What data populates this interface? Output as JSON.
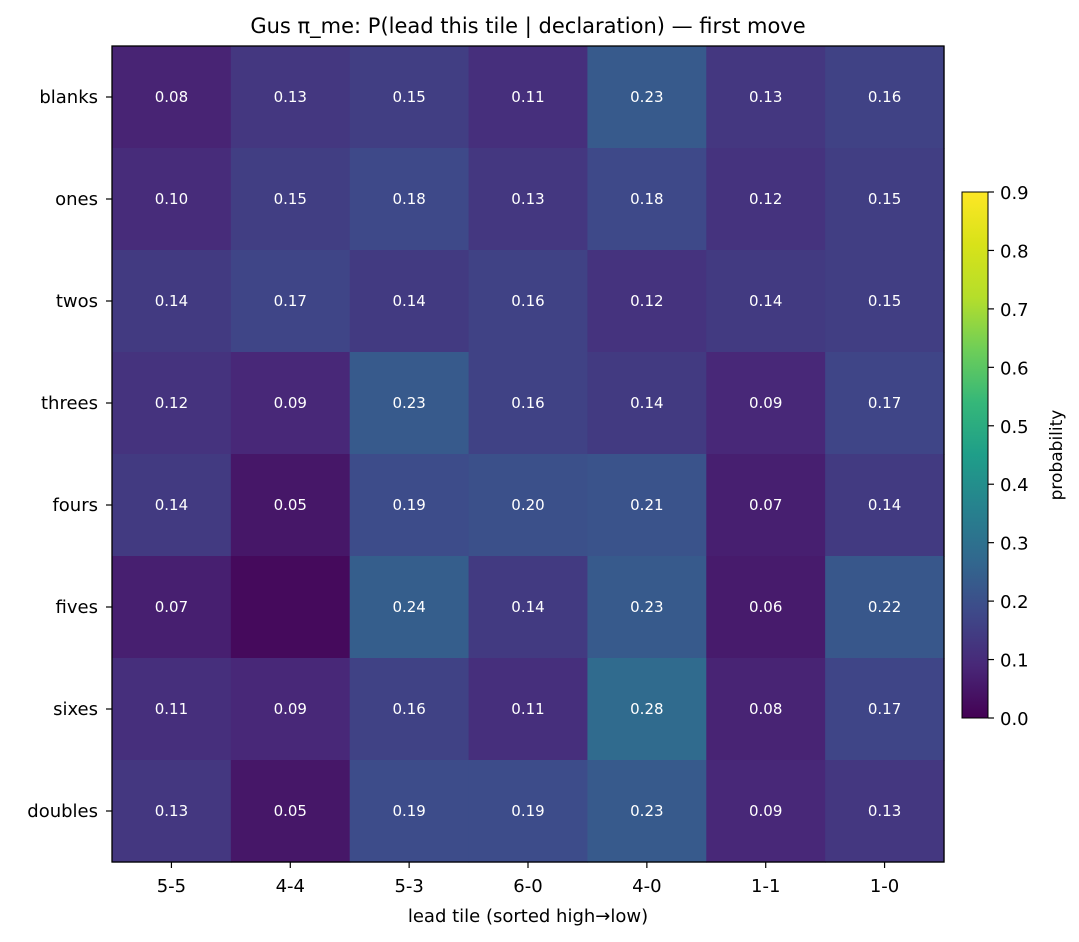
{
  "chart_data": {
    "type": "heatmap",
    "title": "Gus π_me: P(lead this tile | declaration) — first move",
    "xlabel": "lead tile (sorted high→low)",
    "ylabel": "",
    "x_categories": [
      "5-5",
      "4-4",
      "5-3",
      "6-0",
      "4-0",
      "1-1",
      "1-0"
    ],
    "y_categories": [
      "blanks",
      "ones",
      "twos",
      "threes",
      "fours",
      "fives",
      "sixes",
      "doubles"
    ],
    "values": [
      [
        0.08,
        0.13,
        0.15,
        0.11,
        0.23,
        0.13,
        0.16
      ],
      [
        0.1,
        0.15,
        0.18,
        0.13,
        0.18,
        0.12,
        0.15
      ],
      [
        0.14,
        0.17,
        0.14,
        0.16,
        0.12,
        0.14,
        0.15
      ],
      [
        0.12,
        0.09,
        0.23,
        0.16,
        0.14,
        0.09,
        0.17
      ],
      [
        0.14,
        0.05,
        0.19,
        0.2,
        0.21,
        0.07,
        0.14
      ],
      [
        0.07,
        null,
        0.24,
        0.14,
        0.23,
        0.06,
        0.22
      ],
      [
        0.11,
        0.09,
        0.16,
        0.11,
        0.28,
        0.08,
        0.17
      ],
      [
        0.13,
        0.05,
        0.19,
        0.19,
        0.23,
        0.09,
        0.13
      ]
    ],
    "empty_cell_value": 0.02,
    "colormap": "viridis",
    "colorbar": {
      "label": "probability",
      "range": [
        0.0,
        0.9
      ],
      "ticks": [
        "0.0",
        "0.1",
        "0.2",
        "0.3",
        "0.4",
        "0.5",
        "0.6",
        "0.7",
        "0.8",
        "0.9"
      ]
    }
  }
}
